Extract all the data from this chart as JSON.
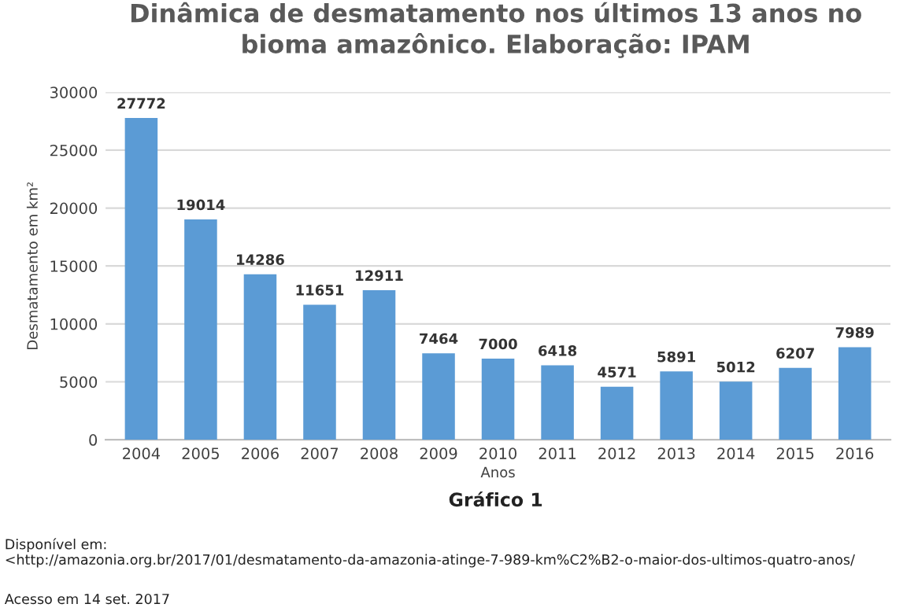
{
  "chart_data": {
    "type": "bar",
    "title": "Dinâmica de desmatamento nos últimos 13 anos no\nbioma amazônico. Elaboração: IPAM",
    "categories": [
      "2004",
      "2005",
      "2006",
      "2007",
      "2008",
      "2009",
      "2010",
      "2011",
      "2012",
      "2013",
      "2014",
      "2015",
      "2016"
    ],
    "values": [
      27772,
      19014,
      14286,
      11651,
      12911,
      7464,
      7000,
      6418,
      4571,
      5891,
      5012,
      6207,
      7989
    ],
    "color": "#5b9bd5",
    "ylim": [
      0,
      30000
    ],
    "yticks": [
      0,
      5000,
      10000,
      15000,
      20000,
      25000,
      30000
    ],
    "grid": "y",
    "data_labels": true,
    "xlabel": "Anos",
    "ylabel": "Desmatamento em km²",
    "annotations": [
      "Gráfico 1",
      "Disponível em: <http://amazonia.org.br/2017/01/desmatamento-da-amazonia-atinge-7-989-km%C2%B2-o-maior-dos-ultimos-quatro-anos/",
      "Acesso em 14 set. 2017"
    ]
  }
}
